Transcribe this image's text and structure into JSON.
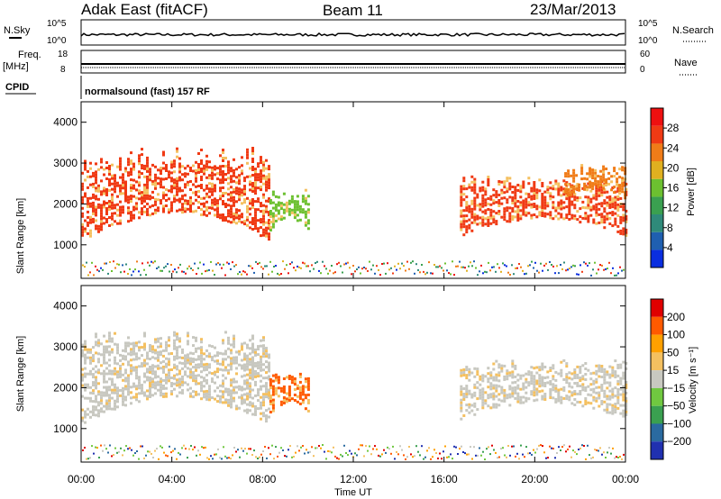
{
  "header": {
    "radar": "Adak East (fitACF)",
    "beam": "Beam 11",
    "date": "23/Mar/2013"
  },
  "top_panels": {
    "nsky_label": "N.Sky",
    "nsky_ticks": [
      "10^5",
      "10^0"
    ],
    "nsearch_label": "N.Search",
    "nsearch_ticks": [
      "10^5",
      "10^0"
    ],
    "freq_label_1": "Freq.",
    "freq_label_2": "[MHz]",
    "freq_ticks": [
      "18",
      "8"
    ],
    "nave_label": "Nave",
    "nave_ticks": [
      "60",
      "0"
    ],
    "cpid_label": "CPID",
    "cpid_text": "normalsound (fast) 157 RF"
  },
  "colors": {
    "power": [
      "#0a2ee0",
      "#1f5fb0",
      "#2f8a7a",
      "#3aa050",
      "#6cc030",
      "#e0b020",
      "#f07c18",
      "#f03a14",
      "#ee1010"
    ],
    "velocity": [
      "#e00000",
      "#ff5a00",
      "#ffa000",
      "#f4c060",
      "#c8c8c0",
      "#70c840",
      "#3aa050",
      "#2a6aa0",
      "#2030b0"
    ]
  },
  "chart_data": [
    {
      "type": "heatmap",
      "title": "",
      "xlabel": "Time UT",
      "ylabel": "Slant Range [km]",
      "x_ticks": [
        "00:00",
        "04:00",
        "08:00",
        "12:00",
        "16:00",
        "20:00",
        "00:00"
      ],
      "xlim_hours": [
        0,
        24
      ],
      "y_ticks": [
        "1000",
        "2000",
        "3000",
        "4000"
      ],
      "ylim": [
        180,
        4500
      ],
      "colorbar_label": "Power [dB]",
      "colorbar_ticks": [
        "4",
        "8",
        "12",
        "16",
        "20",
        "24",
        "28"
      ],
      "colorbar_range": [
        0,
        30
      ],
      "echo_regions": [
        {
          "t_start": 0.0,
          "t_end": 8.3,
          "range_low": 750,
          "range_high": 3400,
          "power_db": 26
        },
        {
          "t_start": 8.3,
          "t_end": 10.0,
          "range_low": 1200,
          "range_high": 2400,
          "power_db": 14
        },
        {
          "t_start": 16.7,
          "t_end": 24.0,
          "range_low": 1000,
          "range_high": 2700,
          "power_db": 24
        },
        {
          "t_start": 21.3,
          "t_end": 24.0,
          "range_low": 2000,
          "range_high": 3000,
          "power_db": 22
        }
      ]
    },
    {
      "type": "heatmap",
      "title": "",
      "xlabel": "Time UT",
      "ylabel": "Slant Range [km]",
      "x_ticks": [
        "00:00",
        "04:00",
        "08:00",
        "12:00",
        "16:00",
        "20:00",
        "00:00"
      ],
      "xlim_hours": [
        0,
        24
      ],
      "y_ticks": [
        "1000",
        "2000",
        "3000",
        "4000"
      ],
      "ylim": [
        180,
        4500
      ],
      "colorbar_label": "Velocity [m s⁻¹]",
      "colorbar_ticks": [
        "200",
        "100",
        "50",
        "15",
        "−15",
        "−50",
        "−100",
        "−200"
      ],
      "colorbar_range": [
        -250,
        250
      ],
      "echo_regions": [
        {
          "t_start": 0.0,
          "t_end": 8.3,
          "range_low": 750,
          "range_high": 3400,
          "velocity": -10
        },
        {
          "t_start": 8.3,
          "t_end": 10.0,
          "range_low": 1200,
          "range_high": 2400,
          "velocity": 150
        },
        {
          "t_start": 16.7,
          "t_end": 24.0,
          "range_low": 1000,
          "range_high": 2700,
          "velocity": 0
        }
      ]
    }
  ]
}
